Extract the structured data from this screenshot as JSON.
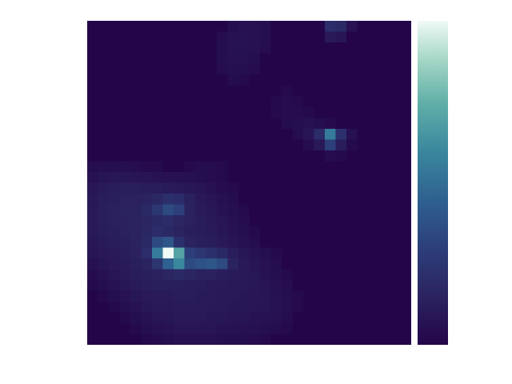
{
  "chart_data": {
    "type": "heatmap",
    "tick_labels": false,
    "color_range": [
      0,
      100
    ],
    "cells": [
      [
        0,
        0,
        0,
        0,
        0,
        0,
        0,
        0,
        0,
        0,
        0,
        0,
        0,
        5,
        6,
        6,
        5,
        0,
        0,
        0,
        0,
        0,
        20,
        18,
        6,
        0,
        0,
        0,
        0,
        0
      ],
      [
        0,
        0,
        0,
        0,
        0,
        0,
        0,
        0,
        0,
        0,
        0,
        0,
        4,
        6,
        7,
        6,
        5,
        0,
        0,
        0,
        0,
        0,
        10,
        8,
        0,
        0,
        0,
        0,
        0,
        0
      ],
      [
        0,
        0,
        0,
        0,
        0,
        0,
        0,
        0,
        0,
        0,
        0,
        0,
        5,
        7,
        7,
        6,
        4,
        0,
        0,
        0,
        0,
        0,
        0,
        0,
        0,
        0,
        0,
        0,
        0,
        0
      ],
      [
        0,
        0,
        0,
        0,
        0,
        0,
        0,
        0,
        0,
        0,
        0,
        0,
        5,
        6,
        6,
        5,
        0,
        0,
        0,
        0,
        0,
        0,
        0,
        0,
        0,
        0,
        0,
        0,
        0,
        0
      ],
      [
        0,
        0,
        0,
        0,
        0,
        0,
        0,
        0,
        0,
        0,
        0,
        0,
        4,
        5,
        5,
        4,
        0,
        0,
        0,
        0,
        0,
        0,
        0,
        0,
        0,
        0,
        0,
        0,
        0,
        0
      ],
      [
        0,
        0,
        0,
        0,
        0,
        0,
        0,
        0,
        0,
        0,
        0,
        0,
        0,
        4,
        3,
        0,
        0,
        0,
        0,
        0,
        0,
        0,
        0,
        0,
        0,
        0,
        0,
        0,
        0,
        0
      ],
      [
        0,
        0,
        0,
        0,
        0,
        0,
        0,
        0,
        0,
        0,
        0,
        0,
        0,
        0,
        0,
        0,
        0,
        0,
        3,
        0,
        0,
        0,
        0,
        0,
        0,
        0,
        0,
        0,
        0,
        0
      ],
      [
        0,
        0,
        0,
        0,
        0,
        0,
        0,
        0,
        0,
        0,
        0,
        0,
        0,
        0,
        0,
        0,
        0,
        3,
        4,
        3,
        0,
        0,
        0,
        0,
        0,
        0,
        0,
        0,
        0,
        0
      ],
      [
        0,
        0,
        0,
        0,
        0,
        0,
        0,
        0,
        0,
        0,
        0,
        0,
        0,
        0,
        0,
        0,
        0,
        3,
        4,
        4,
        3,
        0,
        0,
        0,
        0,
        0,
        0,
        0,
        0,
        0
      ],
      [
        0,
        0,
        0,
        0,
        0,
        0,
        0,
        0,
        0,
        0,
        0,
        0,
        0,
        0,
        0,
        0,
        0,
        0,
        4,
        5,
        6,
        5,
        3,
        0,
        0,
        0,
        0,
        0,
        0,
        0
      ],
      [
        0,
        0,
        0,
        0,
        0,
        0,
        0,
        0,
        0,
        0,
        0,
        0,
        0,
        0,
        0,
        0,
        0,
        0,
        0,
        4,
        8,
        20,
        55,
        22,
        6,
        0,
        0,
        0,
        0,
        0
      ],
      [
        0,
        0,
        0,
        0,
        0,
        0,
        0,
        0,
        0,
        0,
        0,
        0,
        0,
        0,
        0,
        0,
        0,
        0,
        0,
        0,
        4,
        10,
        30,
        12,
        3,
        0,
        0,
        0,
        0,
        0
      ],
      [
        0,
        0,
        0,
        0,
        0,
        0,
        0,
        0,
        0,
        0,
        0,
        0,
        0,
        0,
        0,
        0,
        0,
        0,
        0,
        0,
        0,
        0,
        4,
        3,
        0,
        0,
        0,
        0,
        0,
        0
      ],
      [
        4,
        5,
        5,
        5,
        4,
        3,
        3,
        0,
        0,
        3,
        4,
        4,
        3,
        0,
        0,
        0,
        0,
        0,
        0,
        0,
        0,
        0,
        0,
        0,
        0,
        0,
        0,
        0,
        0,
        0
      ],
      [
        6,
        8,
        9,
        9,
        8,
        8,
        7,
        6,
        6,
        6,
        5,
        4,
        3,
        0,
        0,
        0,
        0,
        0,
        0,
        0,
        0,
        0,
        0,
        0,
        0,
        0,
        0,
        0,
        0,
        0
      ],
      [
        9,
        11,
        12,
        13,
        13,
        12,
        12,
        11,
        10,
        9,
        8,
        6,
        4,
        3,
        0,
        0,
        0,
        0,
        0,
        0,
        0,
        0,
        0,
        0,
        0,
        0,
        0,
        0,
        0,
        0
      ],
      [
        10,
        12,
        13,
        14,
        14,
        15,
        17,
        22,
        20,
        14,
        10,
        8,
        6,
        4,
        0,
        0,
        0,
        0,
        0,
        0,
        0,
        0,
        0,
        0,
        0,
        0,
        0,
        0,
        0,
        0
      ],
      [
        10,
        13,
        14,
        15,
        15,
        18,
        25,
        35,
        30,
        15,
        11,
        9,
        7,
        5,
        3,
        0,
        0,
        0,
        0,
        0,
        0,
        0,
        0,
        0,
        0,
        0,
        0,
        0,
        0,
        0
      ],
      [
        11,
        13,
        14,
        14,
        15,
        16,
        18,
        20,
        17,
        14,
        12,
        10,
        8,
        6,
        4,
        0,
        0,
        0,
        0,
        0,
        0,
        0,
        0,
        0,
        0,
        0,
        0,
        0,
        0,
        0
      ],
      [
        10,
        12,
        13,
        14,
        15,
        17,
        20,
        18,
        15,
        13,
        12,
        11,
        9,
        7,
        5,
        3,
        0,
        0,
        0,
        0,
        0,
        0,
        0,
        0,
        0,
        0,
        0,
        0,
        0,
        0
      ],
      [
        9,
        11,
        12,
        13,
        15,
        18,
        35,
        40,
        22,
        15,
        13,
        12,
        10,
        8,
        6,
        4,
        0,
        0,
        0,
        0,
        0,
        0,
        0,
        0,
        0,
        0,
        0,
        0,
        0,
        0
      ],
      [
        8,
        10,
        11,
        12,
        14,
        20,
        55,
        100,
        70,
        30,
        25,
        22,
        18,
        12,
        9,
        7,
        5,
        3,
        0,
        0,
        0,
        0,
        0,
        0,
        0,
        0,
        0,
        0,
        0,
        0
      ],
      [
        6,
        8,
        10,
        11,
        13,
        15,
        25,
        45,
        60,
        35,
        38,
        40,
        35,
        15,
        10,
        8,
        6,
        4,
        0,
        0,
        0,
        0,
        0,
        0,
        0,
        0,
        0,
        0,
        0,
        0
      ],
      [
        4,
        6,
        8,
        10,
        12,
        13,
        14,
        16,
        18,
        16,
        14,
        14,
        12,
        11,
        10,
        9,
        7,
        5,
        3,
        0,
        0,
        0,
        0,
        0,
        0,
        0,
        0,
        0,
        0,
        0
      ],
      [
        3,
        5,
        7,
        9,
        11,
        12,
        13,
        13,
        13,
        12,
        12,
        11,
        11,
        10,
        10,
        9,
        8,
        6,
        4,
        0,
        0,
        0,
        0,
        0,
        0,
        0,
        0,
        0,
        0,
        0
      ],
      [
        0,
        3,
        5,
        7,
        9,
        10,
        11,
        11,
        12,
        12,
        11,
        11,
        10,
        10,
        9,
        9,
        8,
        7,
        5,
        3,
        0,
        0,
        0,
        0,
        0,
        0,
        0,
        0,
        0,
        0
      ],
      [
        0,
        0,
        3,
        5,
        7,
        9,
        10,
        10,
        11,
        11,
        11,
        10,
        10,
        9,
        9,
        8,
        8,
        7,
        5,
        3,
        0,
        0,
        0,
        0,
        0,
        0,
        0,
        0,
        0,
        0
      ],
      [
        0,
        0,
        0,
        3,
        5,
        7,
        8,
        9,
        10,
        10,
        10,
        9,
        9,
        8,
        8,
        7,
        7,
        6,
        4,
        0,
        0,
        0,
        0,
        0,
        0,
        0,
        0,
        0,
        0,
        0
      ],
      [
        0,
        0,
        0,
        0,
        3,
        5,
        6,
        7,
        8,
        8,
        8,
        8,
        7,
        7,
        6,
        6,
        5,
        4,
        3,
        0,
        0,
        0,
        0,
        0,
        0,
        0,
        0,
        0,
        0,
        0
      ],
      [
        0,
        0,
        0,
        0,
        0,
        3,
        4,
        5,
        6,
        6,
        6,
        6,
        5,
        5,
        5,
        4,
        3,
        0,
        0,
        0,
        0,
        0,
        0,
        0,
        0,
        0,
        0,
        0,
        0,
        0
      ]
    ]
  }
}
